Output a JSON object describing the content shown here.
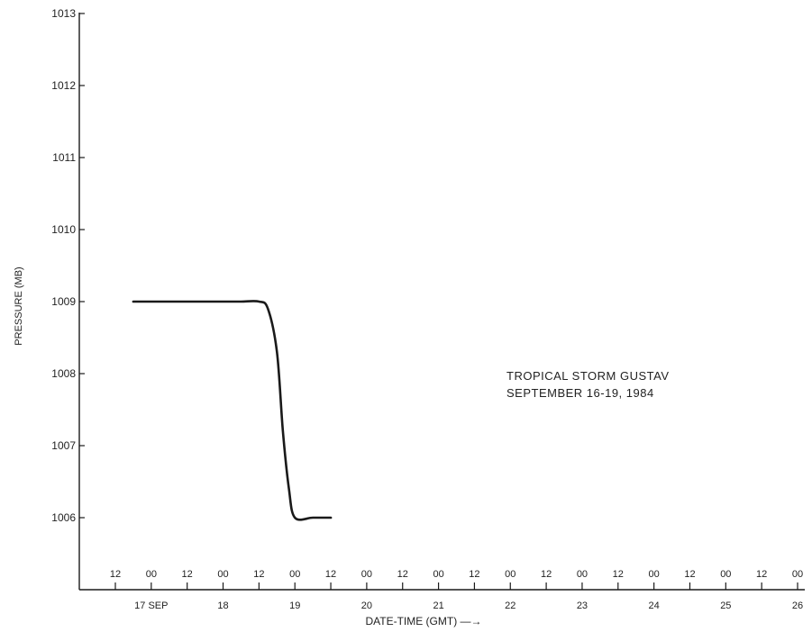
{
  "chart_data": {
    "type": "line",
    "title": "TROPICAL STORM GUSTAV",
    "subtitle": "SEPTEMBER 16-19, 1984",
    "ylabel": "PRESSURE (MB)",
    "xlabel": "DATE-TIME (GMT) —→",
    "ylim": [
      1005,
      1013
    ],
    "y_ticks": [
      1006,
      1007,
      1008,
      1009,
      1010,
      1011,
      1012,
      1013
    ],
    "y_tick_labels": [
      "1006",
      "1007",
      "1008",
      "1009",
      "1010",
      "1011",
      "1012",
      "1013"
    ],
    "x_range": [
      "1984-09-16T12",
      "1984-09-26T00"
    ],
    "hour_ticks": [
      {
        "t": "1984-09-16T12",
        "label": "12"
      },
      {
        "t": "1984-09-17T00",
        "label": "00"
      },
      {
        "t": "1984-09-17T12",
        "label": "12"
      },
      {
        "t": "1984-09-18T00",
        "label": "00"
      },
      {
        "t": "1984-09-18T12",
        "label": "12"
      },
      {
        "t": "1984-09-19T00",
        "label": "00"
      },
      {
        "t": "1984-09-19T12",
        "label": "12"
      },
      {
        "t": "1984-09-20T00",
        "label": "00"
      },
      {
        "t": "1984-09-20T12",
        "label": "12"
      },
      {
        "t": "1984-09-21T00",
        "label": "00"
      },
      {
        "t": "1984-09-21T12",
        "label": "12"
      },
      {
        "t": "1984-09-22T00",
        "label": "00"
      },
      {
        "t": "1984-09-22T12",
        "label": "12"
      },
      {
        "t": "1984-09-23T00",
        "label": "00"
      },
      {
        "t": "1984-09-23T12",
        "label": "12"
      },
      {
        "t": "1984-09-24T00",
        "label": "00"
      },
      {
        "t": "1984-09-24T12",
        "label": "12"
      },
      {
        "t": "1984-09-25T00",
        "label": "00"
      },
      {
        "t": "1984-09-25T12",
        "label": "12"
      },
      {
        "t": "1984-09-26T00",
        "label": "00"
      }
    ],
    "day_labels": [
      {
        "t": "1984-09-17T00",
        "label": "17 SEP"
      },
      {
        "t": "1984-09-18T00",
        "label": "18"
      },
      {
        "t": "1984-09-19T00",
        "label": "19"
      },
      {
        "t": "1984-09-20T00",
        "label": "20"
      },
      {
        "t": "1984-09-21T00",
        "label": "21"
      },
      {
        "t": "1984-09-22T00",
        "label": "22"
      },
      {
        "t": "1984-09-23T00",
        "label": "23"
      },
      {
        "t": "1984-09-24T00",
        "label": "24"
      },
      {
        "t": "1984-09-25T00",
        "label": "25"
      },
      {
        "t": "1984-09-26T00",
        "label": "26"
      }
    ],
    "series": [
      {
        "x": [
          "1984-09-16T18",
          "1984-09-17T00",
          "1984-09-17T12",
          "1984-09-18T00",
          "1984-09-18T06",
          "1984-09-18T12",
          "1984-09-18T15",
          "1984-09-18T18",
          "1984-09-18T20",
          "1984-09-18T22",
          "1984-09-19T00",
          "1984-09-19T06",
          "1984-09-19T12"
        ],
        "y": [
          1009,
          1009,
          1009,
          1009,
          1009,
          1009,
          1008.9,
          1008.3,
          1007.2,
          1006.4,
          1006.0,
          1006.0,
          1006.0
        ]
      }
    ],
    "grid": false,
    "colors": {
      "line": "#1a1a1a",
      "axis": "#1a1a1a",
      "text": "#222222",
      "background": "#ffffff"
    }
  }
}
